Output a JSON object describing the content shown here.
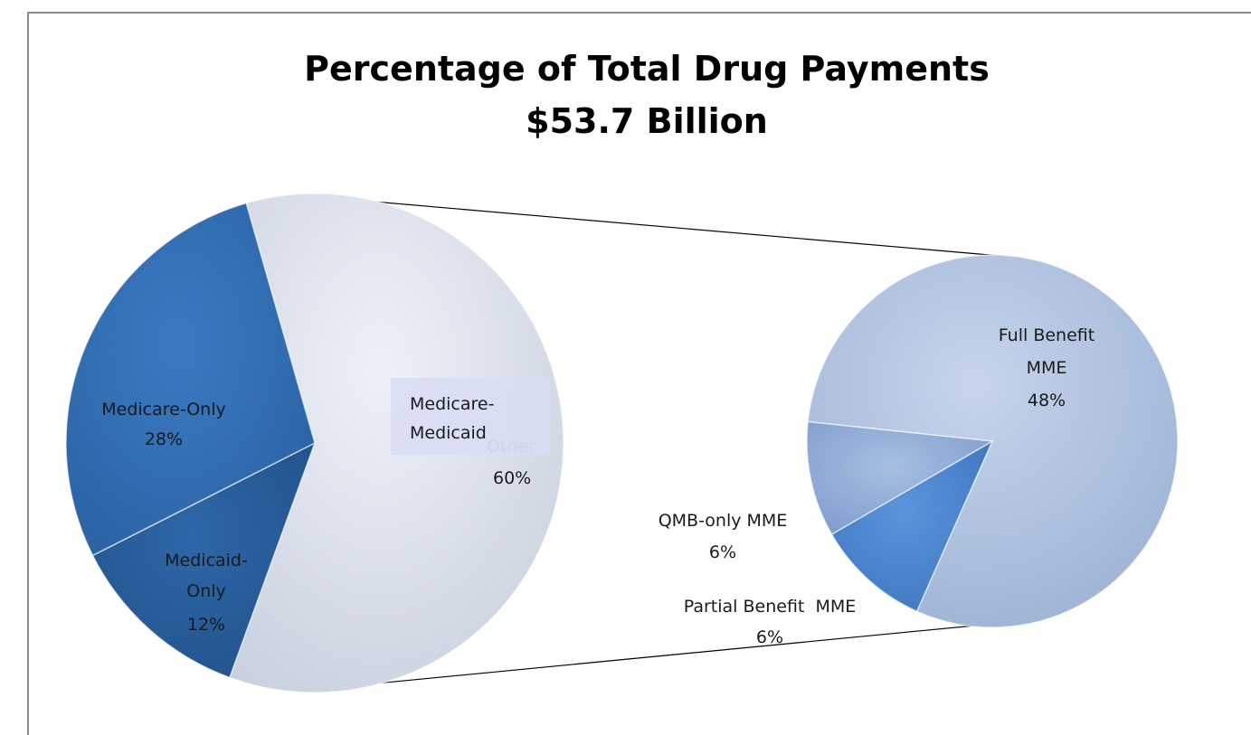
{
  "chart_data": {
    "type": "pie",
    "title": "Percentage of Total Drug Payments",
    "subtitle": "$53.7 Billion",
    "main_pie": {
      "slices": [
        {
          "label_lines": [
            "Medicare-",
            "Medicaid"
          ],
          "pct_text": "60%",
          "value": 60,
          "color": "#dde2ee",
          "faint_text": "Other"
        },
        {
          "label_lines": [
            "Medicare-Only"
          ],
          "pct_text": "28%",
          "value": 28,
          "color": "#2f6db5"
        },
        {
          "label_lines": [
            "Medicaid-",
            "Only"
          ],
          "pct_text": "12%",
          "value": 12,
          "color": "#275e9f"
        }
      ]
    },
    "breakout_pie": {
      "slices": [
        {
          "label_lines": [
            "Full Benefit",
            "MME"
          ],
          "pct_text": "48%",
          "value": 48,
          "color": "#b5c6e3"
        },
        {
          "label_lines": [
            "Partial Benefit  MME"
          ],
          "pct_text": "6%",
          "value": 6,
          "color": "#4a84cc"
        },
        {
          "label_lines": [
            "QMB-only MME"
          ],
          "pct_text": "6%",
          "value": 6,
          "color": "#8aaad6"
        }
      ]
    }
  }
}
